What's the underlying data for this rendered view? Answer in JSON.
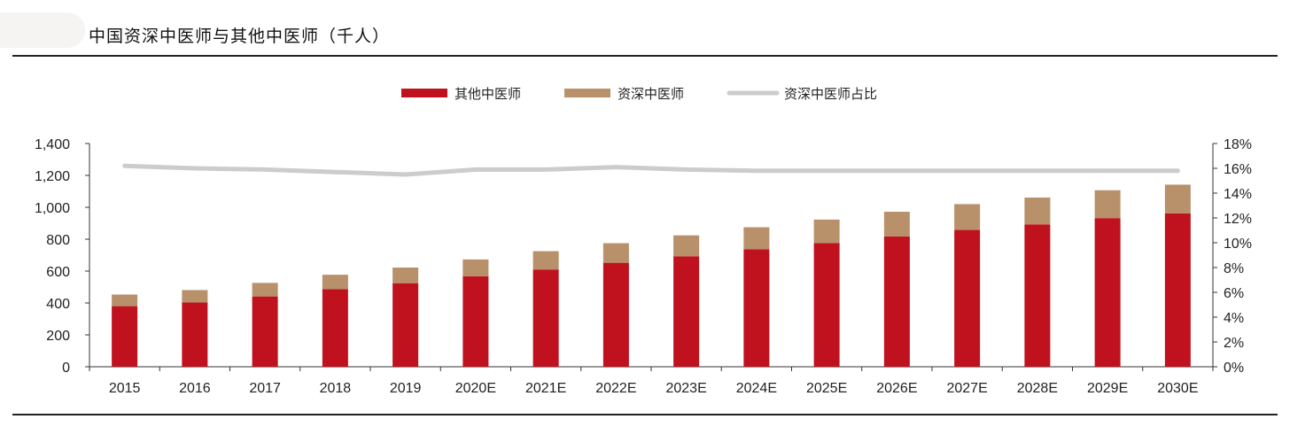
{
  "page_title": "中国资深中医师与其他中医师（千人）",
  "chart_data": {
    "type": "bar",
    "stacked": true,
    "categories": [
      "2015",
      "2016",
      "2017",
      "2018",
      "2019",
      "2020E",
      "2021E",
      "2022E",
      "2023E",
      "2024E",
      "2025E",
      "2026E",
      "2027E",
      "2028E",
      "2029E",
      "2030E"
    ],
    "series": [
      {
        "name": "其他中医师",
        "color": "#c0111f",
        "axis": "left",
        "values": [
          380,
          403,
          441,
          486,
          524,
          568,
          610,
          652,
          693,
          736,
          776,
          817,
          858,
          893,
          932,
          962
        ]
      },
      {
        "name": "资深中医师",
        "color": "#b8906a",
        "axis": "left",
        "values": [
          73,
          78,
          85,
          91,
          98,
          105,
          115,
          123,
          131,
          139,
          147,
          155,
          162,
          168,
          175,
          180
        ]
      },
      {
        "name": "资深中医师占比",
        "color": "#cccccc",
        "type": "line",
        "axis": "right",
        "values": [
          16.2,
          16.0,
          15.9,
          15.7,
          15.5,
          15.9,
          15.9,
          16.1,
          15.9,
          15.8,
          15.8,
          15.8,
          15.8,
          15.8,
          15.8,
          15.8
        ]
      }
    ],
    "ylim": [
      0,
      1400
    ],
    "y_ticks": [
      "0",
      "200",
      "400",
      "600",
      "800",
      "1,000",
      "1,200",
      "1,400"
    ],
    "y2lim": [
      0,
      18
    ],
    "y2_ticks": [
      "0%",
      "2%",
      "4%",
      "6%",
      "8%",
      "10%",
      "12%",
      "14%",
      "16%",
      "18%"
    ],
    "legend_position": "top-center",
    "grid": false
  }
}
